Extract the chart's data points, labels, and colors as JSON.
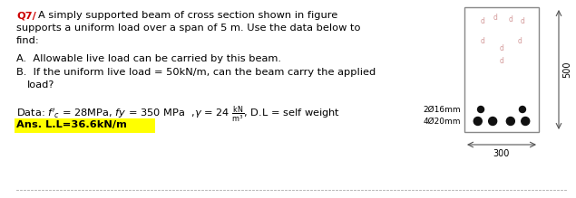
{
  "bg_color": "#ffffff",
  "text_color": "#000000",
  "q7_color": "#cc0000",
  "ans_bg_color": "#ffff00",
  "beam_color": "#ffffff",
  "beam_border": "#888888",
  "rebar_color": "#111111",
  "comp_rebar_color": "#cc8888",
  "dim_color": "#555555",
  "dot_line_color": "#aaaaaa",
  "label_2016": "2Ø16mm",
  "label_4020": "4Ø20mm",
  "dim_width": "300",
  "dim_height": "500",
  "ans_line": "Ans. L.L=36.6kN/m"
}
